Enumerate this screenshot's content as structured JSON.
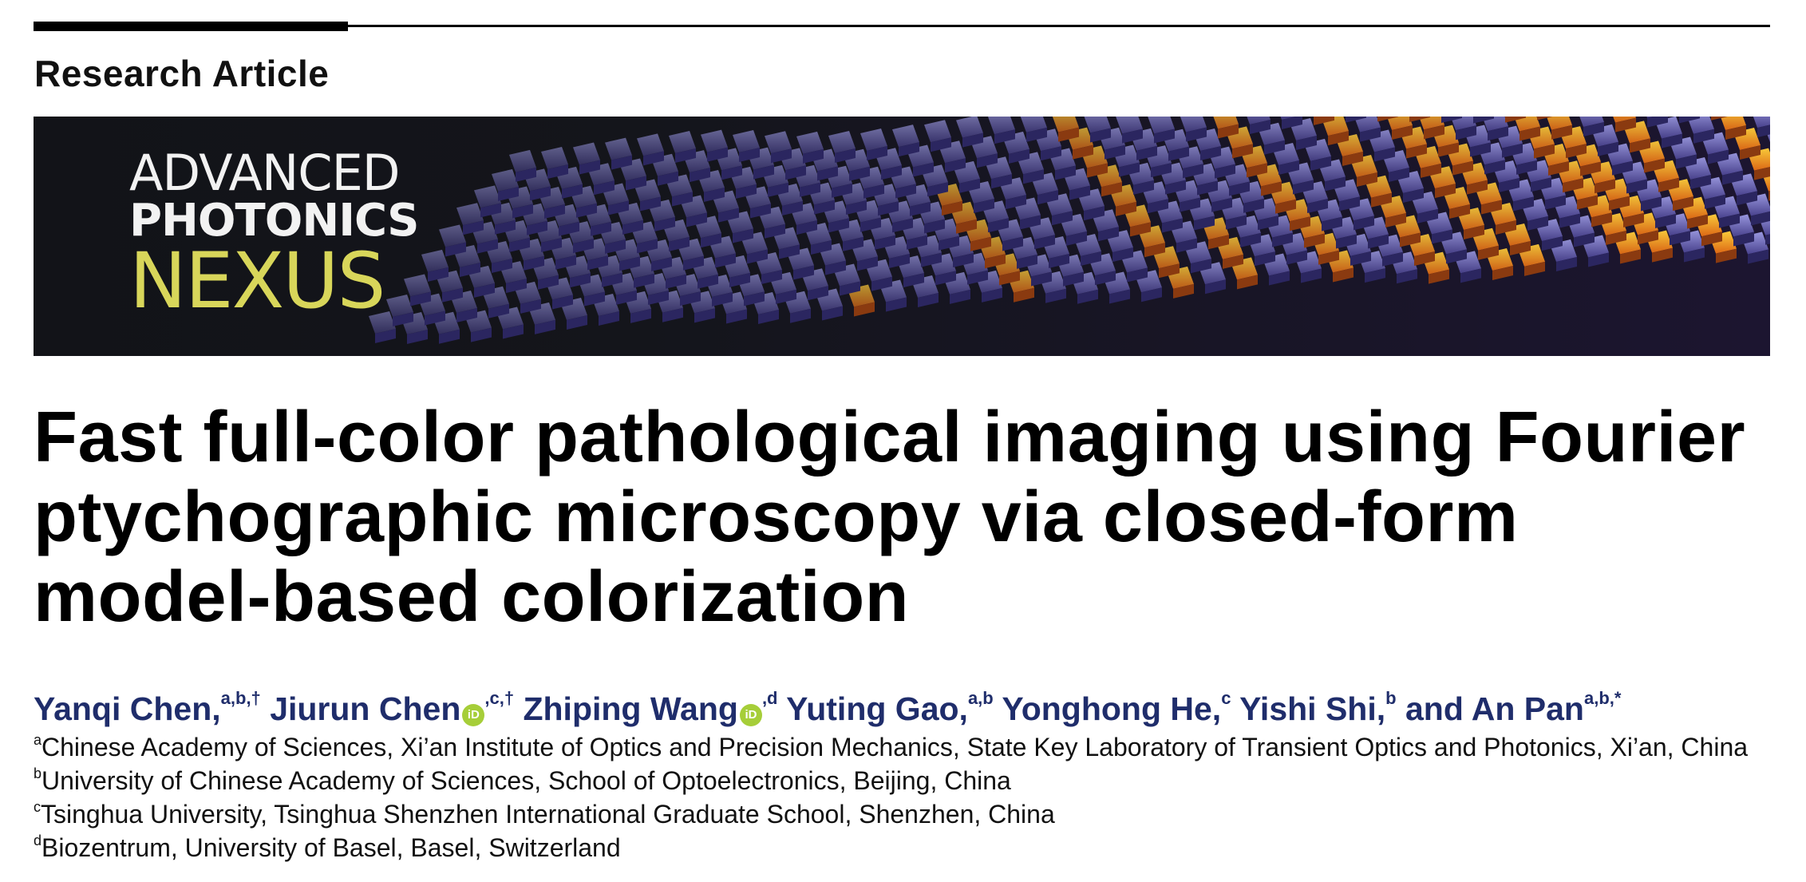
{
  "article_type": "Research Article",
  "banner": {
    "logo_line1": "ADVANCED",
    "logo_line2": "PHOTONICS",
    "logo_line3": "NEXUS",
    "logo_color": "#d8d65a"
  },
  "title_lines": [
    "Fast full-color pathological imaging using Fourier",
    "ptychographic microscopy via closed-form",
    "model-based colorization"
  ],
  "authors": [
    {
      "name": "Yanqi Chen,",
      "sup": "a,b,†",
      "orcid": false
    },
    {
      "name": "Jiurun Chen",
      "sup": ",c,†",
      "orcid": true
    },
    {
      "name": "Zhiping Wang",
      "sup": ",d",
      "orcid": true
    },
    {
      "name": "Yuting Gao,",
      "sup": "a,b",
      "orcid": false
    },
    {
      "name": "Yonghong He,",
      "sup": "c",
      "orcid": false
    },
    {
      "name": "Yishi Shi,",
      "sup": "b",
      "orcid": false
    },
    {
      "name": "and An Pan",
      "sup": "a,b,*",
      "orcid": false
    }
  ],
  "orcid_label": "iD",
  "author_color": "#1f2d6b",
  "affiliations": [
    {
      "mark": "a",
      "text": "Chinese Academy of Sciences, Xi’an Institute of Optics and Precision Mechanics, State Key Laboratory of Transient Optics and Photonics, Xi’an, China"
    },
    {
      "mark": "b",
      "text": "University of Chinese Academy of Sciences, School of Optoelectronics, Beijing, China"
    },
    {
      "mark": "c",
      "text": "Tsinghua University, Tsinghua Shenzhen International Graduate School, Shenzhen, China"
    },
    {
      "mark": "d",
      "text": "Biozentrum, University of Basel, Basel, Switzerland"
    }
  ]
}
